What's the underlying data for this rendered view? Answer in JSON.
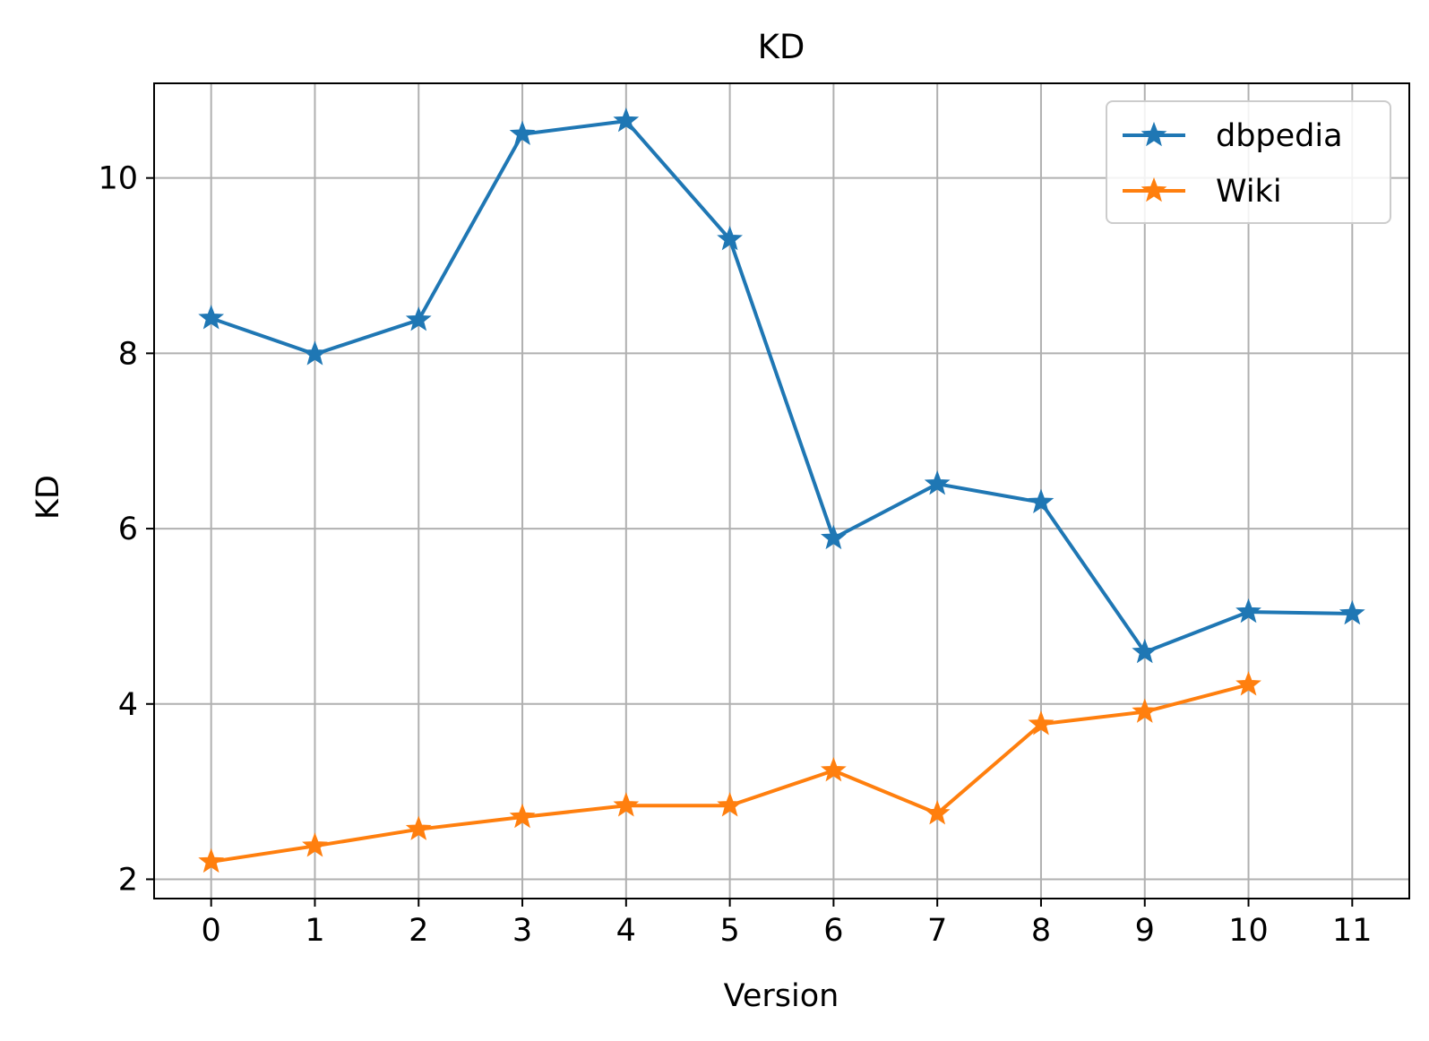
{
  "chart_data": {
    "type": "line",
    "title": "KD",
    "xlabel": "Version",
    "ylabel": "KD",
    "x_ticks": [
      0,
      1,
      2,
      3,
      4,
      5,
      6,
      7,
      8,
      9,
      10,
      11
    ],
    "y_ticks": [
      2,
      4,
      6,
      8,
      10
    ],
    "xlim": [
      -0.55,
      11.55
    ],
    "ylim": [
      1.78,
      11.08
    ],
    "grid": true,
    "legend_position": "top-right",
    "marker": "star",
    "series": [
      {
        "name": "dbpedia",
        "color": "#1f77b4",
        "x": [
          0,
          1,
          2,
          3,
          4,
          5,
          6,
          7,
          8,
          9,
          10,
          11
        ],
        "values": [
          8.4,
          7.99,
          8.38,
          10.5,
          10.65,
          9.3,
          5.89,
          6.51,
          6.3,
          4.59,
          5.05,
          5.03
        ]
      },
      {
        "name": "Wiki",
        "color": "#ff7f0e",
        "x": [
          0,
          1,
          2,
          3,
          4,
          5,
          6,
          7,
          8,
          9,
          10
        ],
        "values": [
          2.2,
          2.38,
          2.57,
          2.71,
          2.84,
          2.84,
          3.24,
          2.75,
          3.77,
          3.91,
          4.22
        ]
      }
    ]
  }
}
